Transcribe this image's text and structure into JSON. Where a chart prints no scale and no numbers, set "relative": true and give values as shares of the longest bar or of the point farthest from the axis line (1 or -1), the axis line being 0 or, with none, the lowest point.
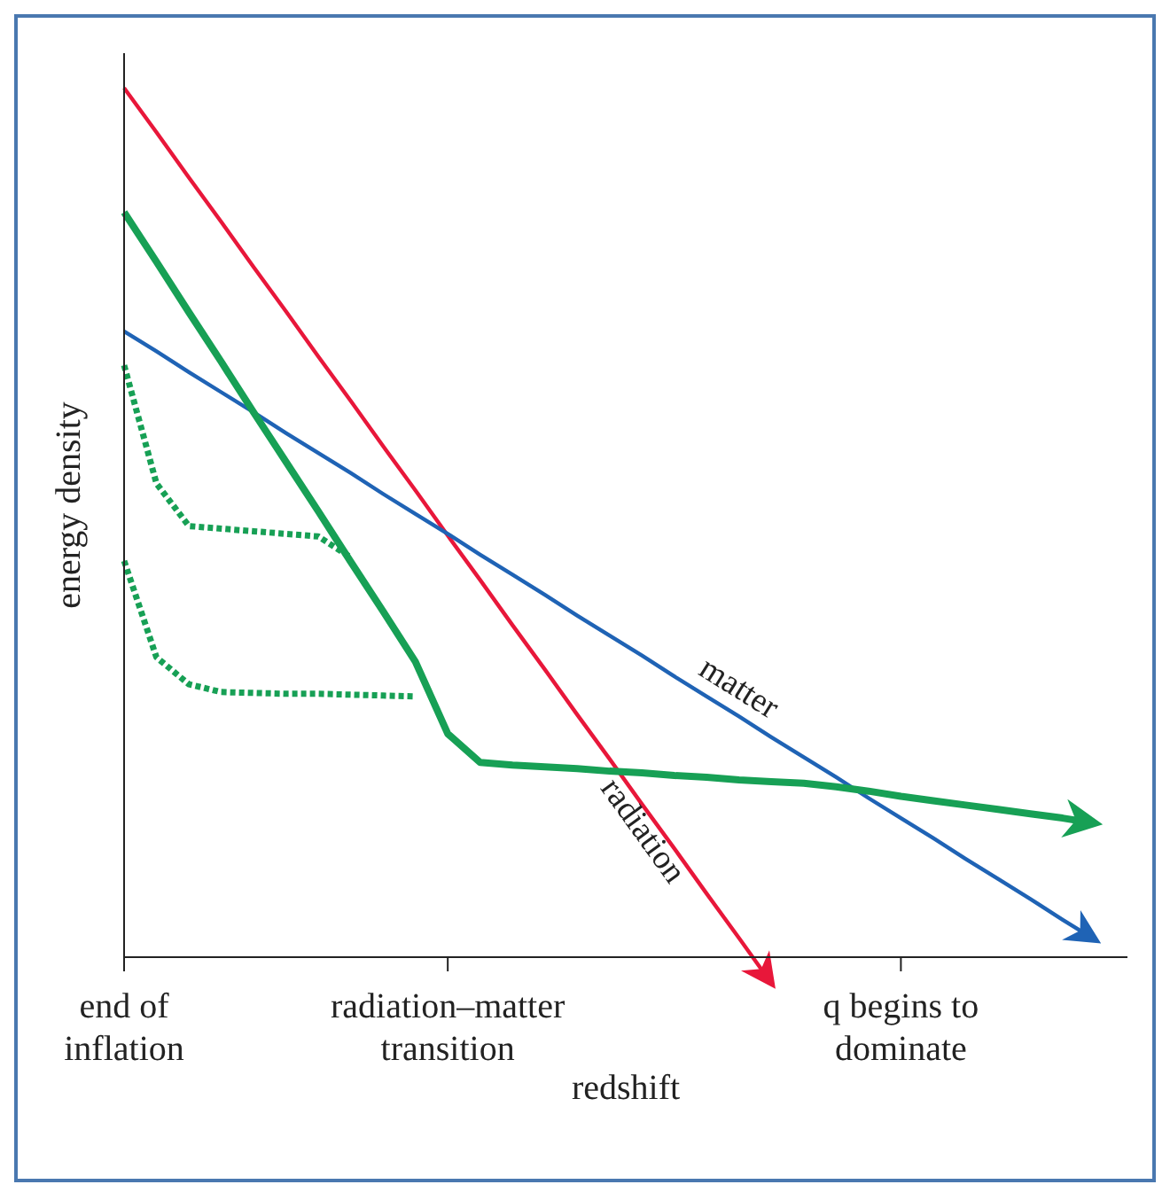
{
  "chart_data": {
    "type": "line",
    "relative": true,
    "xlabel": "redshift",
    "ylabel": "energy density",
    "categories": [
      "end of inflation",
      null,
      null,
      null,
      null,
      null,
      null,
      null,
      null,
      null,
      "radiation–matter transition",
      null,
      null,
      null,
      null,
      null,
      null,
      null,
      null,
      null,
      null,
      null,
      null,
      null,
      "q begins to dominate",
      null,
      null,
      null,
      null,
      null,
      null,
      null
    ],
    "grid": false,
    "legend": false,
    "marker": "none",
    "series": [
      {
        "name": "radiation",
        "color": "#e8173a",
        "line_style": "solid",
        "values": [
          1,
          0.949,
          0.897,
          0.846,
          0.794,
          0.743,
          0.691,
          0.64,
          0.588,
          0.537,
          0.485,
          0.434,
          0.382,
          0.331,
          0.279,
          0.228,
          0.176,
          0.125,
          0.073,
          0.022,
          -0.03,
          null,
          null,
          null,
          null,
          null,
          null,
          null,
          null,
          null,
          null,
          null
        ]
      },
      {
        "name": "matter",
        "color": "#1f63b5",
        "line_style": "solid",
        "values": [
          0.72,
          0.697,
          0.673,
          0.65,
          0.627,
          0.603,
          0.58,
          0.557,
          0.533,
          0.51,
          0.487,
          0.463,
          0.44,
          0.417,
          0.393,
          0.37,
          0.347,
          0.323,
          0.3,
          0.277,
          0.253,
          0.23,
          0.207,
          0.183,
          0.16,
          0.137,
          0.113,
          0.09,
          0.067,
          0.043,
          0.02,
          null
        ]
      },
      {
        "color": "#17a055",
        "line_style": "solid",
        "values": [
          0.857,
          0.8,
          0.742,
          0.685,
          0.627,
          0.57,
          0.513,
          0.455,
          0.398,
          0.34,
          0.257,
          0.224,
          0.221,
          0.219,
          0.217,
          0.214,
          0.212,
          0.209,
          0.207,
          0.204,
          0.202,
          0.2,
          0.196,
          0.191,
          0.185,
          0.18,
          0.175,
          0.17,
          0.165,
          0.16,
          0.154,
          null
        ]
      },
      {
        "color": "#17a055",
        "line_style": "dotted",
        "values": [
          0.681,
          0.545,
          0.496,
          0.493,
          0.49,
          0.487,
          0.484,
          0.46,
          null,
          null,
          null,
          null,
          null,
          null,
          null,
          null,
          null,
          null,
          null,
          null,
          null,
          null,
          null,
          null,
          null,
          null,
          null,
          null,
          null,
          null,
          null,
          null
        ]
      },
      {
        "color": "#17a055",
        "line_style": "dotted",
        "values": [
          0.456,
          0.345,
          0.314,
          0.305,
          0.304,
          0.303,
          0.303,
          0.302,
          0.301,
          0.3,
          null,
          null,
          null,
          null,
          null,
          null,
          null,
          null,
          null,
          null,
          null,
          null,
          null,
          null,
          null,
          null,
          null,
          null,
          null,
          null,
          null,
          null
        ]
      }
    ]
  }
}
